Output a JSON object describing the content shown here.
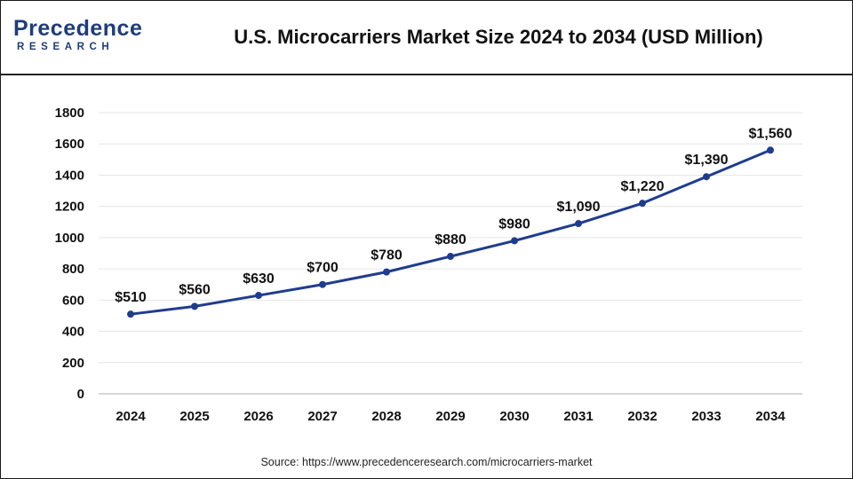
{
  "brand": {
    "name_top": "Precedence",
    "name_bottom": "RESEARCH",
    "accent_color": "#1f3d7a",
    "logo_icon": "precedence-research-logo-icon"
  },
  "header": {
    "title": "U.S. Microcarriers Market Size 2024 to 2034 (USD Million)"
  },
  "footer": {
    "source": "Source: https://www.precedenceresearch.com/microcarriers-market"
  },
  "chart_data": {
    "type": "line",
    "title": "U.S. Microcarriers Market Size 2024 to 2034 (USD Million)",
    "xlabel": "",
    "ylabel": "",
    "categories": [
      "2024",
      "2025",
      "2026",
      "2027",
      "2028",
      "2029",
      "2030",
      "2031",
      "2032",
      "2033",
      "2034"
    ],
    "series": [
      {
        "name": "Market Size (USD Million)",
        "values": [
          510,
          560,
          630,
          700,
          780,
          880,
          980,
          1090,
          1220,
          1390,
          1560
        ],
        "labels": [
          "$510",
          "$560",
          "$630",
          "$700",
          "$780",
          "$880",
          "$980",
          "$1,090",
          "$1,220",
          "$1,390",
          "$1,560"
        ],
        "color": "#1f3d8f"
      }
    ],
    "ylim": [
      0,
      1800
    ],
    "yticks": [
      0,
      200,
      400,
      600,
      800,
      1000,
      1200,
      1400,
      1600,
      1800
    ],
    "grid": true,
    "legend": "none"
  }
}
